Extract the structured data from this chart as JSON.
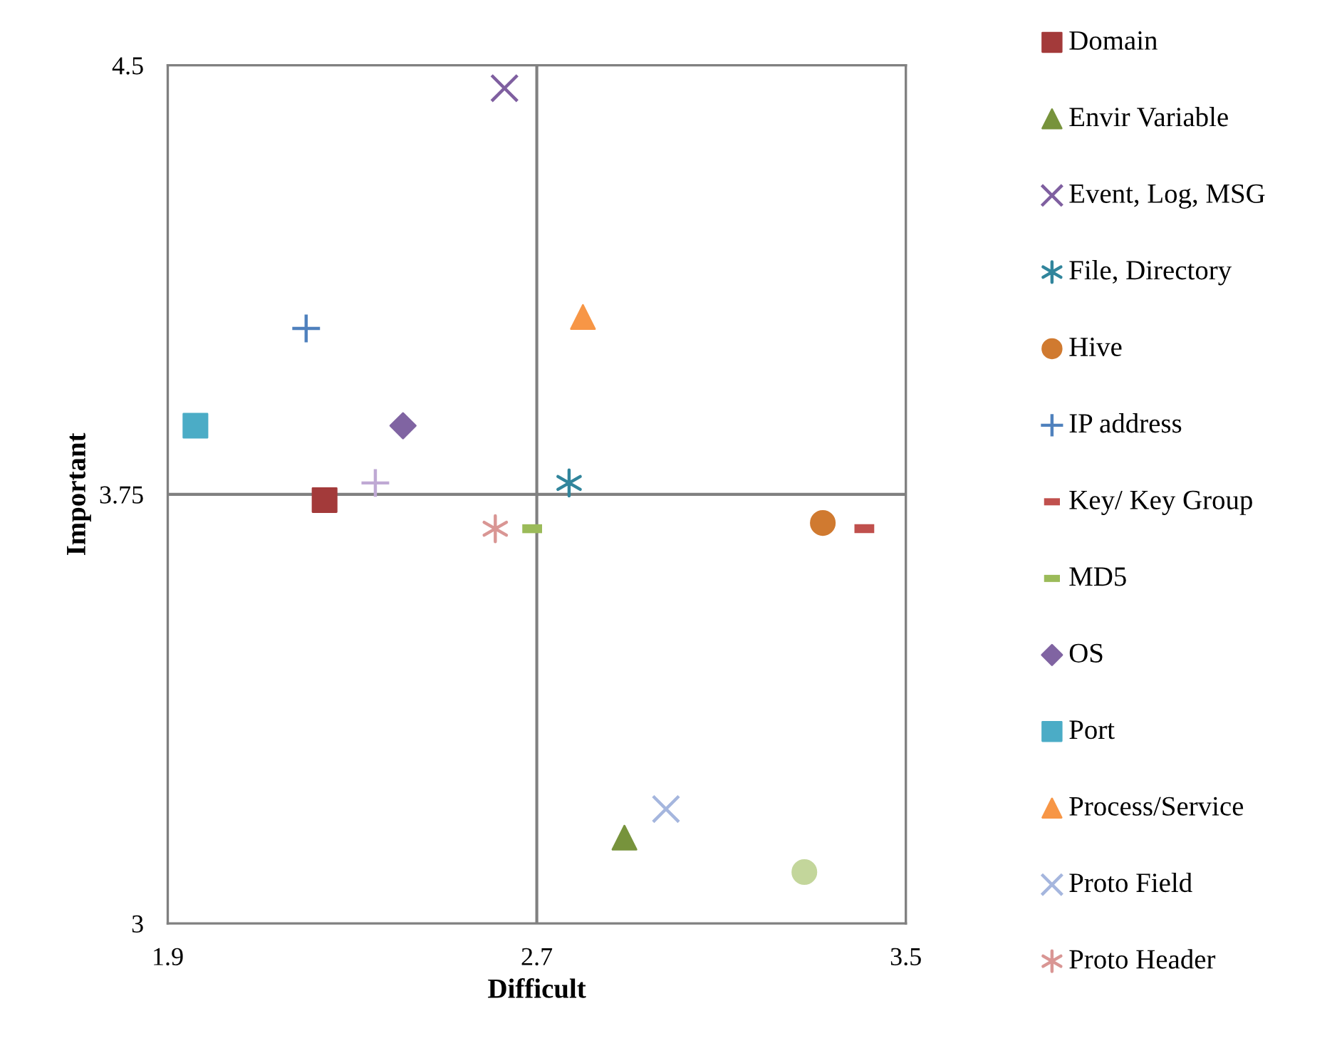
{
  "chart_data": {
    "type": "scatter",
    "xlabel": "Difficult",
    "ylabel": "Important",
    "xlim": [
      1.9,
      3.5
    ],
    "xticks": [
      1.9,
      2.7,
      3.5
    ],
    "ylim": [
      3,
      4.5
    ],
    "yticks": [
      3,
      3.75,
      4.5
    ],
    "grid": false,
    "legend": "right",
    "ref_lines": [
      {
        "axis": "x",
        "value": 2.7,
        "color": "#808080"
      },
      {
        "axis": "y",
        "value": 3.75,
        "color": "#808080"
      }
    ],
    "series": [
      {
        "name": "Domain",
        "color": "#a33a3a",
        "marker": "square",
        "x": [
          2.24
        ],
        "values": [
          3.74
        ]
      },
      {
        "name": "Envir Variable",
        "color": "#77933c",
        "marker": "triangle",
        "x": [
          2.89
        ],
        "values": [
          3.15
        ]
      },
      {
        "name": "Event, Log, MSG",
        "color": "#7f5fa0",
        "marker": "x",
        "x": [
          2.63
        ],
        "values": [
          4.46
        ]
      },
      {
        "name": "File, Directory",
        "color": "#31859c",
        "marker": "cross",
        "x": [
          2.77
        ],
        "values": [
          3.77
        ]
      },
      {
        "name": "Hive",
        "color": "#d07a30",
        "marker": "circle",
        "x": [
          3.32
        ],
        "values": [
          3.7
        ]
      },
      {
        "name": "IP address",
        "color": "#4f81bd",
        "marker": "plus",
        "x": [
          2.2
        ],
        "values": [
          4.04
        ]
      },
      {
        "name": "Key/ Key Group",
        "color": "#c0504d",
        "x": [
          3.41
        ],
        "values": [
          3.69
        ]
      },
      {
        "name": "MD5",
        "color": "#9bbb59",
        "x": [
          2.69
        ],
        "values": [
          3.69
        ]
      },
      {
        "name": "OS",
        "color": "#8064a2",
        "marker": "diamond",
        "x": [
          2.41
        ],
        "values": [
          3.87
        ]
      },
      {
        "name": "Port",
        "color": "#4bacc6",
        "marker": "square",
        "x": [
          1.96
        ],
        "values": [
          3.87
        ]
      },
      {
        "name": "Process/Service",
        "color": "#f79646",
        "marker": "triangle",
        "x": [
          2.8
        ],
        "values": [
          4.06
        ]
      },
      {
        "name": "Proto Field",
        "color": "#a5b6de",
        "marker": "x",
        "x": [
          2.98
        ],
        "values": [
          3.2
        ]
      },
      {
        "name": "Proto Header",
        "color": "#d99694",
        "marker": "cross",
        "x": [
          2.61
        ],
        "values": [
          3.69
        ]
      },
      {
        "color": "#bfa9d4",
        "marker": "plus",
        "x": [
          2.35
        ],
        "values": [
          3.77
        ]
      },
      {
        "color": "#c3d69b",
        "marker": "circle",
        "x": [
          3.28
        ],
        "values": [
          3.09
        ]
      }
    ]
  }
}
